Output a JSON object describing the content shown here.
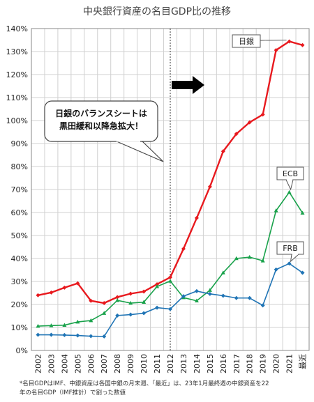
{
  "chart_data": {
    "type": "line",
    "title": "中央銀行資産の名目GDP比の推移",
    "categories": [
      "2002",
      "2003",
      "2004",
      "2005",
      "2006",
      "2007",
      "2008",
      "2009",
      "2010",
      "2011",
      "2012",
      "2013",
      "2014",
      "2015",
      "2016",
      "2017",
      "2018",
      "2019",
      "2020",
      "2021",
      "最近"
    ],
    "ylim": [
      0,
      140
    ],
    "y_ticks": [
      "0%",
      "10%",
      "20%",
      "30%",
      "40%",
      "50%",
      "60%",
      "70%",
      "80%",
      "90%",
      "100%",
      "110%",
      "120%",
      "130%",
      "140%"
    ],
    "grid": true,
    "series": [
      {
        "name": "日銀",
        "color": "#e8191e",
        "values": [
          24,
          25.2,
          27.3,
          29.2,
          21.6,
          20.6,
          23.2,
          24.7,
          25.6,
          28.8,
          31.8,
          44.2,
          57.6,
          71.2,
          86.6,
          94.2,
          99.2,
          102.6,
          130.6,
          134.4,
          132.8
        ]
      },
      {
        "name": "ECB",
        "color": "#19a24b",
        "values": [
          10.6,
          10.8,
          11,
          12.4,
          13,
          16.2,
          21.8,
          20.6,
          21,
          27.8,
          30.2,
          23,
          21.6,
          26.2,
          33.8,
          40,
          40.6,
          39,
          60.8,
          68.8,
          59.8
        ]
      },
      {
        "name": "FRB",
        "color": "#1f74b5",
        "values": [
          6.8,
          6.8,
          6.7,
          6.5,
          6.2,
          6.1,
          15.2,
          15.6,
          16.2,
          18.6,
          18,
          23.6,
          25.8,
          24.6,
          23.8,
          22.8,
          22.8,
          19.6,
          35.2,
          37.8,
          33.8
        ]
      }
    ],
    "marker_line_at": "2012",
    "annotations": {
      "callout_text": [
        "日銀のバランスシートは",
        "黒田緩和以降急拡大！"
      ]
    },
    "footnote": [
      "*名目GDPはIMF、中銀資産は各国中銀の月末週、「最近」は、23年1月最終週の中銀資産を22",
      "年の名目GDP（IMF推計）で割った数値"
    ]
  }
}
